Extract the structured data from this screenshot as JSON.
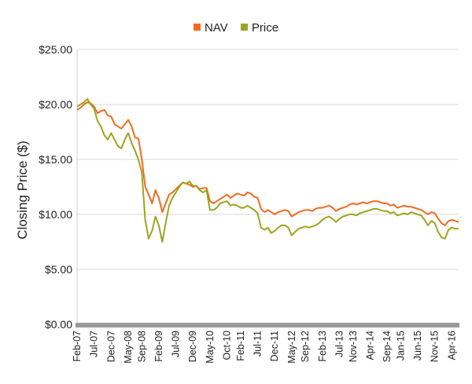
{
  "chart_data": {
    "type": "line",
    "ylabel": "Closing Price ($)",
    "ylim": [
      0,
      25
    ],
    "y_ticks": [
      "$0.00",
      "$5.00",
      "$10.00",
      "$15.00",
      "$20.00",
      "$25.00"
    ],
    "x_ticks": [
      "Feb-07",
      "Jul-07",
      "Dec-07",
      "May-08",
      "Sep-08",
      "Feb-09",
      "Jul-09",
      "Dec-09",
      "May-10",
      "Oct-10",
      "Feb-11",
      "Jul-11",
      "Dec-11",
      "May-12",
      "Sep-12",
      "Feb-13",
      "Jul-13",
      "Nov-13",
      "Apr-14",
      "Sep-14",
      "Jan-15",
      "Jun-15",
      "Nov-15",
      "Apr-16"
    ],
    "x_start": "Feb-07",
    "x_end": "Jun-16",
    "grid": "horizontal",
    "legend_position": "top-center",
    "series": [
      {
        "name": "NAV",
        "color": "#F26A21",
        "points": [
          [
            "2007-02-01",
            19.5
          ],
          [
            "2007-03-01",
            19.7
          ],
          [
            "2007-04-01",
            20.0
          ],
          [
            "2007-05-01",
            20.2
          ],
          [
            "2007-06-01",
            20.1
          ],
          [
            "2007-07-01",
            19.8
          ],
          [
            "2007-08-01",
            19.2
          ],
          [
            "2007-09-01",
            19.4
          ],
          [
            "2007-10-01",
            19.5
          ],
          [
            "2007-11-01",
            19.0
          ],
          [
            "2007-12-01",
            18.9
          ],
          [
            "2008-01-01",
            18.2
          ],
          [
            "2008-02-01",
            18.0
          ],
          [
            "2008-03-01",
            17.8
          ],
          [
            "2008-04-01",
            18.2
          ],
          [
            "2008-05-01",
            18.6
          ],
          [
            "2008-06-01",
            18.0
          ],
          [
            "2008-07-01",
            17.0
          ],
          [
            "2008-08-01",
            16.9
          ],
          [
            "2008-09-01",
            15.0
          ],
          [
            "2008-10-01",
            12.5
          ],
          [
            "2008-11-01",
            11.8
          ],
          [
            "2008-12-01",
            11.0
          ],
          [
            "2009-01-01",
            12.2
          ],
          [
            "2009-02-01",
            11.5
          ],
          [
            "2009-03-01",
            10.2
          ],
          [
            "2009-04-01",
            11.0
          ],
          [
            "2009-05-01",
            11.8
          ],
          [
            "2009-06-01",
            12.0
          ],
          [
            "2009-07-01",
            12.3
          ],
          [
            "2009-08-01",
            12.6
          ],
          [
            "2009-09-01",
            12.9
          ],
          [
            "2009-10-01",
            12.8
          ],
          [
            "2009-11-01",
            12.7
          ],
          [
            "2009-12-01",
            12.5
          ],
          [
            "2010-01-01",
            12.6
          ],
          [
            "2010-02-01",
            12.3
          ],
          [
            "2010-03-01",
            12.4
          ],
          [
            "2010-04-01",
            12.4
          ],
          [
            "2010-05-01",
            11.2
          ],
          [
            "2010-06-01",
            11.0
          ],
          [
            "2010-07-01",
            11.2
          ],
          [
            "2010-08-01",
            11.4
          ],
          [
            "2010-09-01",
            11.6
          ],
          [
            "2010-10-01",
            11.8
          ],
          [
            "2010-11-01",
            11.5
          ],
          [
            "2010-12-01",
            11.7
          ],
          [
            "2011-01-01",
            11.9
          ],
          [
            "2011-02-01",
            11.8
          ],
          [
            "2011-03-01",
            11.7
          ],
          [
            "2011-04-01",
            12.0
          ],
          [
            "2011-05-01",
            11.9
          ],
          [
            "2011-06-01",
            11.6
          ],
          [
            "2011-07-01",
            11.5
          ],
          [
            "2011-08-01",
            10.5
          ],
          [
            "2011-09-01",
            10.2
          ],
          [
            "2011-10-01",
            10.4
          ],
          [
            "2011-11-01",
            10.2
          ],
          [
            "2011-12-01",
            10.0
          ],
          [
            "2012-01-01",
            10.2
          ],
          [
            "2012-02-01",
            10.3
          ],
          [
            "2012-03-01",
            10.4
          ],
          [
            "2012-04-01",
            10.3
          ],
          [
            "2012-05-01",
            9.8
          ],
          [
            "2012-06-01",
            10.0
          ],
          [
            "2012-07-01",
            10.2
          ],
          [
            "2012-08-01",
            10.3
          ],
          [
            "2012-09-01",
            10.4
          ],
          [
            "2012-10-01",
            10.4
          ],
          [
            "2012-11-01",
            10.3
          ],
          [
            "2012-12-01",
            10.5
          ],
          [
            "2013-01-01",
            10.6
          ],
          [
            "2013-02-01",
            10.6
          ],
          [
            "2013-03-01",
            10.7
          ],
          [
            "2013-04-01",
            10.8
          ],
          [
            "2013-05-01",
            10.6
          ],
          [
            "2013-06-01",
            10.3
          ],
          [
            "2013-07-01",
            10.5
          ],
          [
            "2013-08-01",
            10.6
          ],
          [
            "2013-09-01",
            10.7
          ],
          [
            "2013-10-01",
            10.9
          ],
          [
            "2013-11-01",
            11.0
          ],
          [
            "2013-12-01",
            10.9
          ],
          [
            "2014-01-01",
            11.0
          ],
          [
            "2014-02-01",
            11.1
          ],
          [
            "2014-03-01",
            11.0
          ],
          [
            "2014-04-01",
            11.1
          ],
          [
            "2014-05-01",
            11.2
          ],
          [
            "2014-06-01",
            11.2
          ],
          [
            "2014-07-01",
            11.1
          ],
          [
            "2014-08-01",
            11.0
          ],
          [
            "2014-09-01",
            11.0
          ],
          [
            "2014-10-01",
            10.8
          ],
          [
            "2014-11-01",
            10.9
          ],
          [
            "2014-12-01",
            10.6
          ],
          [
            "2015-01-01",
            10.7
          ],
          [
            "2015-02-01",
            10.8
          ],
          [
            "2015-03-01",
            10.7
          ],
          [
            "2015-04-01",
            10.7
          ],
          [
            "2015-05-01",
            10.6
          ],
          [
            "2015-06-01",
            10.5
          ],
          [
            "2015-07-01",
            10.4
          ],
          [
            "2015-08-01",
            10.2
          ],
          [
            "2015-09-01",
            10.0
          ],
          [
            "2015-10-01",
            10.2
          ],
          [
            "2015-11-01",
            10.1
          ],
          [
            "2015-12-01",
            9.6
          ],
          [
            "2016-01-01",
            9.2
          ],
          [
            "2016-02-01",
            9.0
          ],
          [
            "2016-03-01",
            9.4
          ],
          [
            "2016-04-01",
            9.5
          ],
          [
            "2016-05-01",
            9.4
          ],
          [
            "2016-06-01",
            9.3
          ]
        ]
      },
      {
        "name": "Price",
        "color": "#9AA61E",
        "points": [
          [
            "2007-02-01",
            19.8
          ],
          [
            "2007-03-01",
            20.0
          ],
          [
            "2007-04-01",
            20.2
          ],
          [
            "2007-05-01",
            20.5
          ],
          [
            "2007-06-01",
            20.0
          ],
          [
            "2007-07-01",
            19.6
          ],
          [
            "2007-08-01",
            18.5
          ],
          [
            "2007-09-01",
            18.0
          ],
          [
            "2007-10-01",
            17.2
          ],
          [
            "2007-11-01",
            16.8
          ],
          [
            "2007-12-01",
            17.4
          ],
          [
            "2008-01-01",
            16.8
          ],
          [
            "2008-02-01",
            16.2
          ],
          [
            "2008-03-01",
            16.0
          ],
          [
            "2008-04-01",
            16.8
          ],
          [
            "2008-05-01",
            17.4
          ],
          [
            "2008-06-01",
            16.5
          ],
          [
            "2008-07-01",
            15.8
          ],
          [
            "2008-08-01",
            15.0
          ],
          [
            "2008-09-01",
            13.8
          ],
          [
            "2008-10-01",
            9.5
          ],
          [
            "2008-11-01",
            7.8
          ],
          [
            "2008-12-01",
            8.5
          ],
          [
            "2009-01-01",
            9.8
          ],
          [
            "2009-02-01",
            9.0
          ],
          [
            "2009-03-01",
            7.5
          ],
          [
            "2009-04-01",
            9.2
          ],
          [
            "2009-05-01",
            10.8
          ],
          [
            "2009-06-01",
            11.5
          ],
          [
            "2009-07-01",
            12.0
          ],
          [
            "2009-08-01",
            12.5
          ],
          [
            "2009-09-01",
            12.9
          ],
          [
            "2009-10-01",
            12.8
          ],
          [
            "2009-11-01",
            13.0
          ],
          [
            "2009-12-01",
            12.6
          ],
          [
            "2010-01-01",
            12.6
          ],
          [
            "2010-02-01",
            12.2
          ],
          [
            "2010-03-01",
            12.0
          ],
          [
            "2010-04-01",
            12.2
          ],
          [
            "2010-05-01",
            10.4
          ],
          [
            "2010-06-01",
            10.4
          ],
          [
            "2010-07-01",
            10.6
          ],
          [
            "2010-08-01",
            11.0
          ],
          [
            "2010-09-01",
            11.1
          ],
          [
            "2010-10-01",
            11.2
          ],
          [
            "2010-11-01",
            10.8
          ],
          [
            "2010-12-01",
            10.9
          ],
          [
            "2011-01-01",
            10.8
          ],
          [
            "2011-02-01",
            10.6
          ],
          [
            "2011-03-01",
            10.6
          ],
          [
            "2011-04-01",
            10.8
          ],
          [
            "2011-05-01",
            10.6
          ],
          [
            "2011-06-01",
            10.4
          ],
          [
            "2011-07-01",
            10.1
          ],
          [
            "2011-08-01",
            8.8
          ],
          [
            "2011-09-01",
            8.6
          ],
          [
            "2011-10-01",
            8.8
          ],
          [
            "2011-11-01",
            8.3
          ],
          [
            "2011-12-01",
            8.5
          ],
          [
            "2012-01-01",
            8.8
          ],
          [
            "2012-02-01",
            9.0
          ],
          [
            "2012-03-01",
            9.0
          ],
          [
            "2012-04-01",
            8.8
          ],
          [
            "2012-05-01",
            8.1
          ],
          [
            "2012-06-01",
            8.4
          ],
          [
            "2012-07-01",
            8.7
          ],
          [
            "2012-08-01",
            8.8
          ],
          [
            "2012-09-01",
            8.9
          ],
          [
            "2012-10-01",
            8.8
          ],
          [
            "2012-11-01",
            8.9
          ],
          [
            "2012-12-01",
            9.0
          ],
          [
            "2013-01-01",
            9.2
          ],
          [
            "2013-02-01",
            9.5
          ],
          [
            "2013-03-01",
            9.7
          ],
          [
            "2013-04-01",
            9.8
          ],
          [
            "2013-05-01",
            9.6
          ],
          [
            "2013-06-01",
            9.3
          ],
          [
            "2013-07-01",
            9.6
          ],
          [
            "2013-08-01",
            9.8
          ],
          [
            "2013-09-01",
            9.9
          ],
          [
            "2013-10-01",
            10.0
          ],
          [
            "2013-11-01",
            10.0
          ],
          [
            "2013-12-01",
            9.9
          ],
          [
            "2014-01-01",
            10.1
          ],
          [
            "2014-02-01",
            10.2
          ],
          [
            "2014-03-01",
            10.3
          ],
          [
            "2014-04-01",
            10.4
          ],
          [
            "2014-05-01",
            10.5
          ],
          [
            "2014-06-01",
            10.5
          ],
          [
            "2014-07-01",
            10.4
          ],
          [
            "2014-08-01",
            10.3
          ],
          [
            "2014-09-01",
            10.3
          ],
          [
            "2014-10-01",
            10.1
          ],
          [
            "2014-11-01",
            10.2
          ],
          [
            "2014-12-01",
            9.9
          ],
          [
            "2015-01-01",
            10.0
          ],
          [
            "2015-02-01",
            10.1
          ],
          [
            "2015-03-01",
            10.0
          ],
          [
            "2015-04-01",
            10.2
          ],
          [
            "2015-05-01",
            10.1
          ],
          [
            "2015-06-01",
            10.0
          ],
          [
            "2015-07-01",
            9.9
          ],
          [
            "2015-08-01",
            9.5
          ],
          [
            "2015-09-01",
            9.0
          ],
          [
            "2015-10-01",
            9.4
          ],
          [
            "2015-11-01",
            9.2
          ],
          [
            "2015-12-01",
            8.4
          ],
          [
            "2016-01-01",
            7.9
          ],
          [
            "2016-02-01",
            7.8
          ],
          [
            "2016-03-01",
            8.6
          ],
          [
            "2016-04-01",
            8.8
          ],
          [
            "2016-05-01",
            8.7
          ],
          [
            "2016-06-01",
            8.7
          ]
        ]
      }
    ]
  }
}
